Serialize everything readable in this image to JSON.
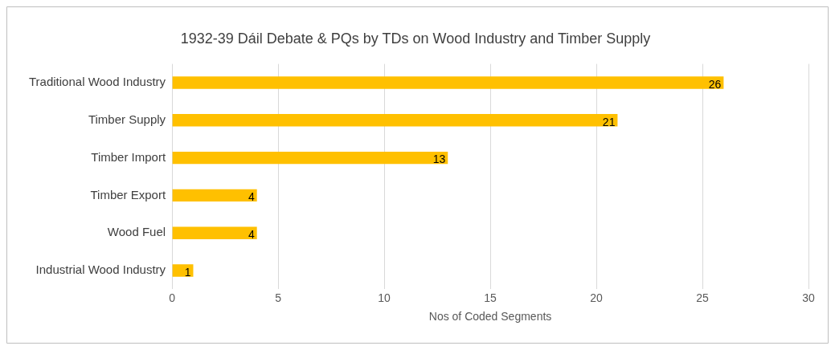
{
  "chart_data": {
    "type": "bar",
    "orientation": "horizontal",
    "title": "1932-39 Dáil Debate & PQs by TDs on Wood Industry and Timber Supply",
    "xlabel": "Nos of Coded Segments",
    "categories": [
      "Traditional Wood Industry",
      "Timber Supply",
      "Timber Import",
      "Timber Export",
      "Wood Fuel",
      "Industrial Wood Industry"
    ],
    "values": [
      26,
      21,
      13,
      4,
      4,
      1
    ],
    "color": "#ffc000",
    "xlim": [
      0,
      30
    ],
    "xticks": [
      0,
      5,
      10,
      15,
      20,
      25,
      30
    ],
    "grid": "x",
    "data_labels": true,
    "legend": false
  }
}
